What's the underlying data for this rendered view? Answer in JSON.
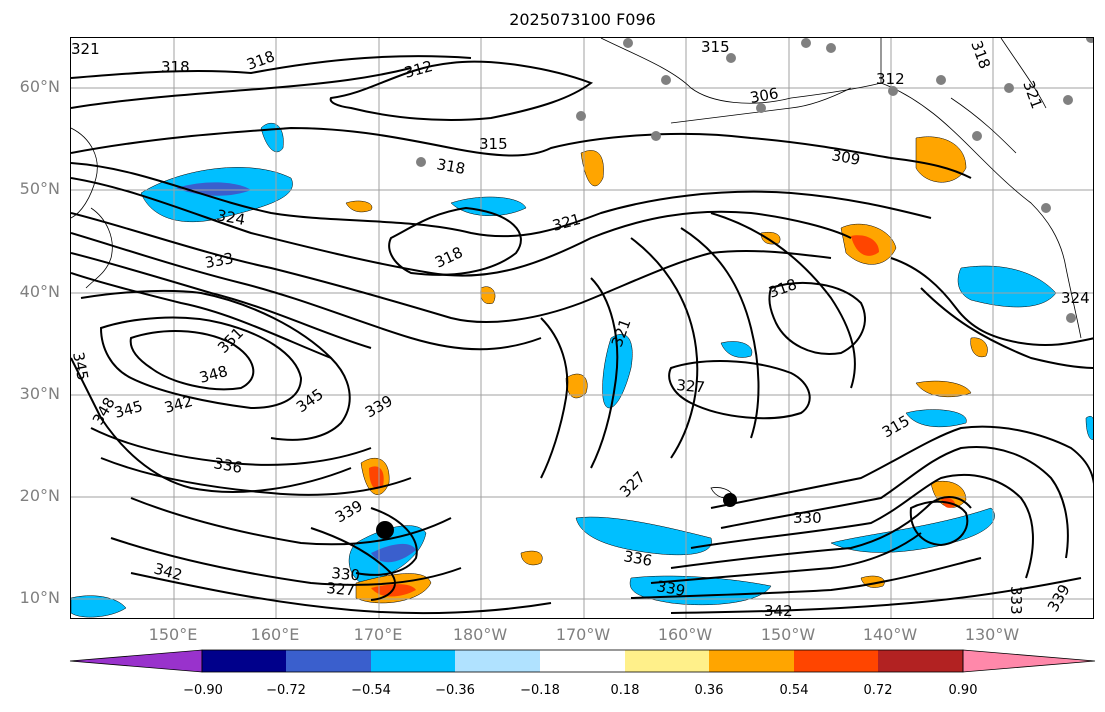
{
  "title": "2025073100 F096",
  "lat_labels": [
    "10°N",
    "20°N",
    "30°N",
    "40°N",
    "50°N",
    "60°N"
  ],
  "lon_labels": [
    "150°E",
    "160°E",
    "170°E",
    "180°W",
    "170°W",
    "160°W",
    "150°W",
    "140°W",
    "130°W"
  ],
  "colorbar": {
    "ticks": [
      "−0.90",
      "−0.72",
      "−0.54",
      "−0.36",
      "−0.18",
      "0.18",
      "0.36",
      "0.54",
      "0.72",
      "0.90"
    ],
    "colors": [
      "#9932cc",
      "#00008b",
      "#3a5fcd",
      "#00bfff",
      "#b0e2ff",
      "#ffffff",
      "#fff08a",
      "#ffa500",
      "#ff4500",
      "#b22222",
      "#ff88aa"
    ]
  },
  "contour_labels": [
    "321",
    "318",
    "318",
    "312",
    "315",
    "312",
    "306",
    "315",
    "309",
    "318",
    "324",
    "321",
    "318",
    "333",
    "351",
    "348",
    "345",
    "342",
    "345",
    "339",
    "336",
    "339",
    "321",
    "327",
    "318",
    "315",
    "330",
    "327",
    "336",
    "339",
    "342",
    "342",
    "333",
    "339",
    "348",
    "345",
    "324",
    "321",
    "318",
    "330",
    "327"
  ]
}
